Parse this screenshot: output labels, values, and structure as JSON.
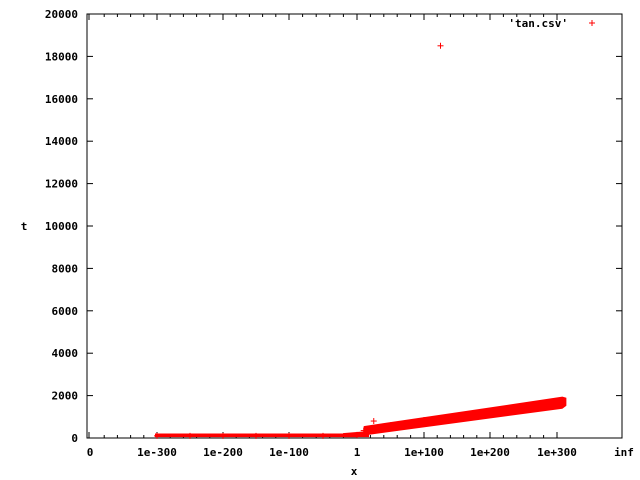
{
  "chart_data": {
    "type": "scatter",
    "title": "",
    "xlabel": "x",
    "ylabel": "t",
    "ylim": [
      0,
      20000
    ],
    "grid": false,
    "legend_position": "top-right",
    "marker": "+",
    "color": "#ff0000",
    "x_tick_labels": [
      "0",
      "1e-300",
      "1e-200",
      "1e-100",
      "1",
      "1e+100",
      "1e+200",
      "1e+300",
      "inf"
    ],
    "y_ticks": [
      0,
      2000,
      4000,
      6000,
      8000,
      10000,
      12000,
      14000,
      16000,
      18000,
      20000
    ],
    "series": [
      {
        "name": "'tan.csv'",
        "points": [
          {
            "x": "1e-300",
            "t": 100
          },
          {
            "x": "1e-250",
            "t": 100
          },
          {
            "x": "1e-200",
            "t": 100
          },
          {
            "x": "1e-150",
            "t": 100
          },
          {
            "x": "1e-100",
            "t": 100
          },
          {
            "x": "1e-50",
            "t": 100
          },
          {
            "x": "1",
            "t": 150
          },
          {
            "x": "1e+10",
            "t": 350
          },
          {
            "x": "1e+25",
            "t": 800
          },
          {
            "x": "1e+50",
            "t": 600
          },
          {
            "x": "1e+100",
            "t": 850
          },
          {
            "x": "1e+125",
            "t": 18500
          },
          {
            "x": "1e+150",
            "t": 1000
          },
          {
            "x": "1e+200",
            "t": 1200
          },
          {
            "x": "1e+250",
            "t": 1450
          },
          {
            "x": "1e+300",
            "t": 1650
          },
          {
            "x": "1e+308",
            "t": 1700
          }
        ]
      }
    ]
  }
}
